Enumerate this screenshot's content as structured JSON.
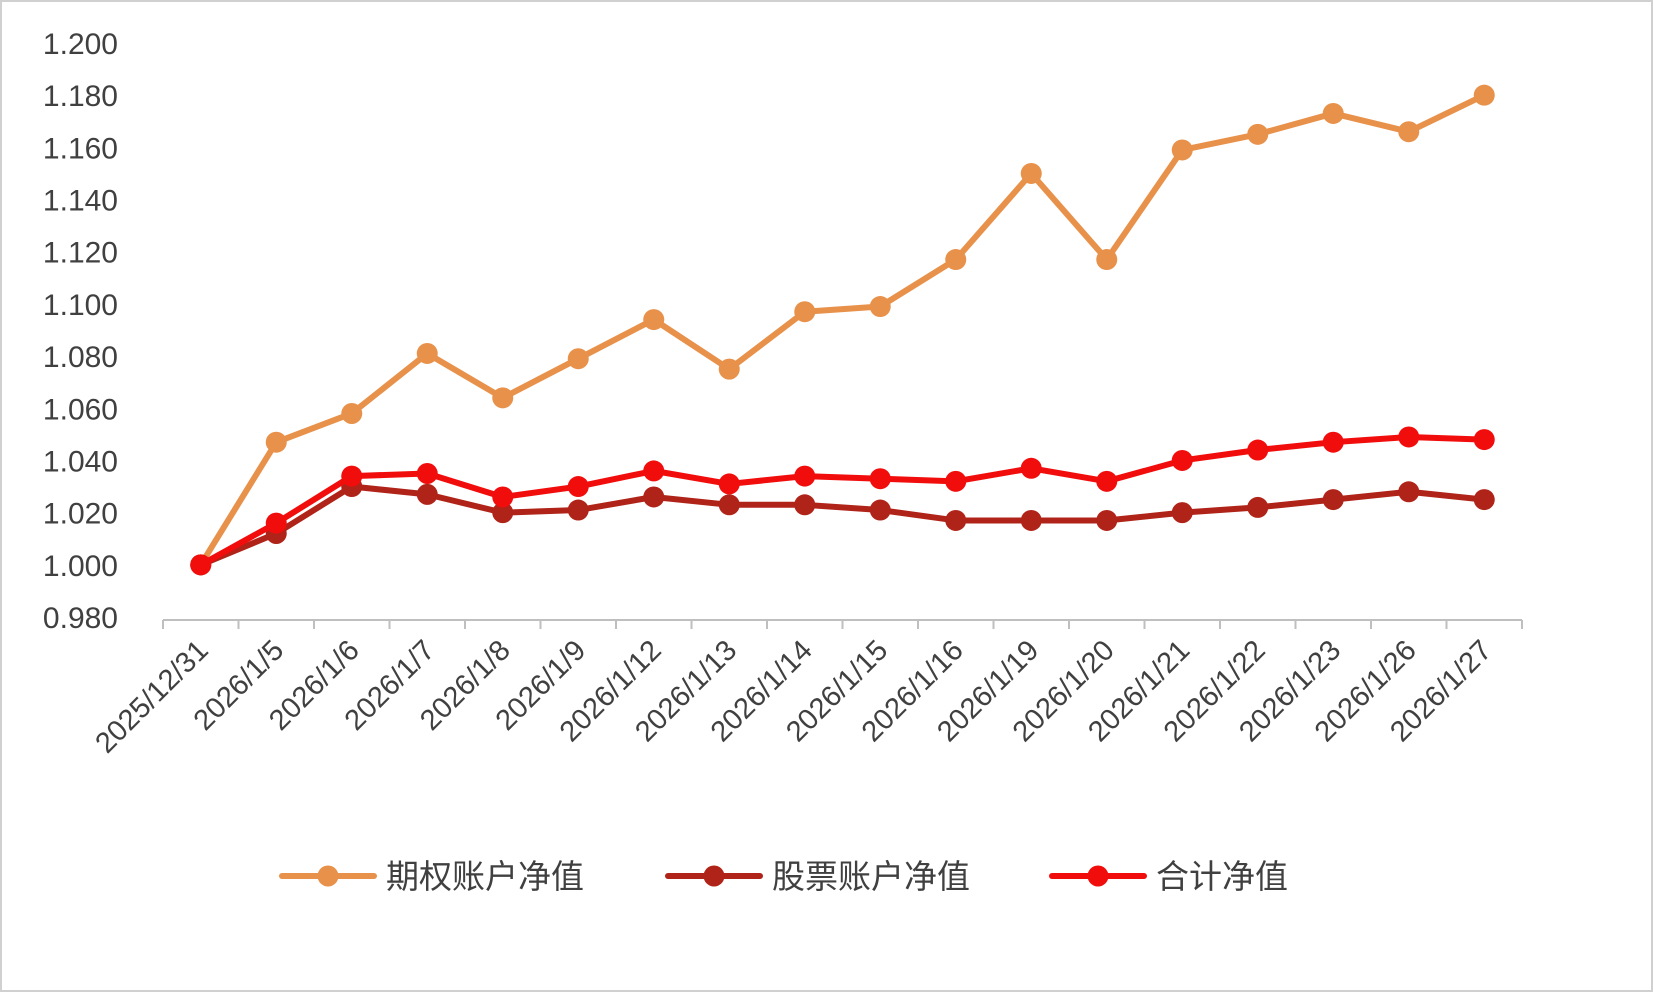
{
  "colors": {
    "options": "#E8914A",
    "stock": "#B02318",
    "total": "#F20D0D",
    "axis": "#BFBFBF",
    "text": "#404040",
    "border": "#D0D0D0",
    "background": "#FFFFFF"
  },
  "chart_data": {
    "type": "line",
    "x": [
      "2025/12/31",
      "2026/1/5",
      "2026/1/6",
      "2026/1/7",
      "2026/1/8",
      "2026/1/9",
      "2026/1/12",
      "2026/1/13",
      "2026/1/14",
      "2026/1/15",
      "2026/1/16",
      "2026/1/19",
      "2026/1/20",
      "2026/1/21",
      "2026/1/22",
      "2026/1/23",
      "2026/1/26",
      "2026/1/27"
    ],
    "series": [
      {
        "name": "期权账户净值",
        "key": "options",
        "values": [
          1.0,
          1.047,
          1.058,
          1.081,
          1.064,
          1.079,
          1.094,
          1.075,
          1.097,
          1.099,
          1.117,
          1.15,
          1.117,
          1.159,
          1.165,
          1.173,
          1.166,
          1.18
        ]
      },
      {
        "name": "股票账户净值",
        "key": "stock",
        "values": [
          1.0,
          1.012,
          1.03,
          1.027,
          1.02,
          1.021,
          1.026,
          1.023,
          1.023,
          1.021,
          1.017,
          1.017,
          1.017,
          1.02,
          1.022,
          1.025,
          1.028,
          1.025
        ]
      },
      {
        "name": "合计净值",
        "key": "total",
        "values": [
          1.0,
          1.016,
          1.034,
          1.035,
          1.026,
          1.03,
          1.036,
          1.031,
          1.034,
          1.033,
          1.032,
          1.037,
          1.032,
          1.04,
          1.044,
          1.047,
          1.049,
          1.048
        ]
      }
    ],
    "title": "",
    "xlabel": "",
    "ylabel": "",
    "ylim": [
      0.98,
      1.2
    ],
    "ytick_step": 0.02,
    "ytick_labels": [
      "0.980",
      "1.000",
      "1.020",
      "1.040",
      "1.060",
      "1.080",
      "1.100",
      "1.120",
      "1.140",
      "1.160",
      "1.180",
      "1.200"
    ],
    "grid": false,
    "legend_position": "bottom"
  }
}
